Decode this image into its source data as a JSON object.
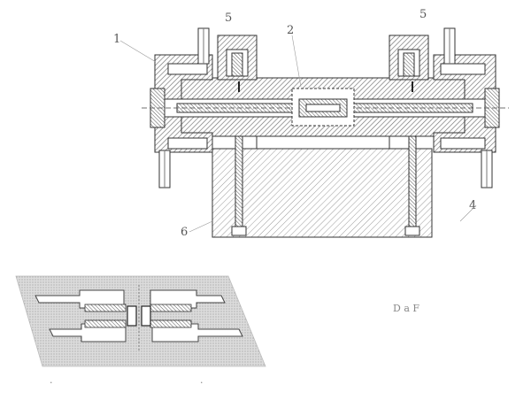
{
  "labels": {
    "top_left": "1",
    "top_center": "2",
    "top_left_port": "5",
    "top_right_port": "5",
    "right_mid": "4",
    "base_left": "6"
  },
  "detail": {
    "caption": "D a F"
  },
  "colors": {
    "ink": "#333333",
    "hatch": "#7a7a7a",
    "paper": "#ffffff",
    "label": "#555555"
  }
}
